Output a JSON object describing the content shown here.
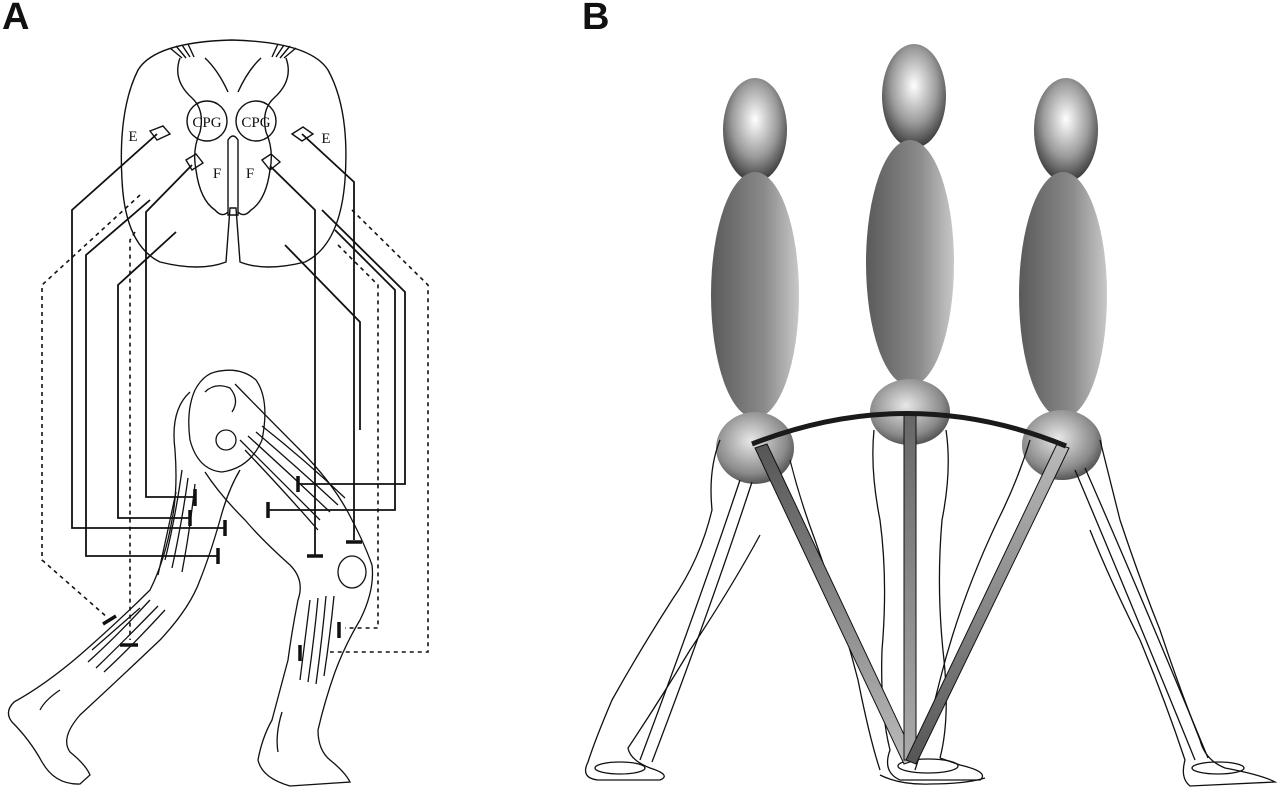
{
  "panels": {
    "a": {
      "label": "A"
    },
    "b": {
      "label": "B"
    }
  },
  "spinal_cord": {
    "left_cpg": "CPG",
    "right_cpg": "CPG",
    "left_extensor": "E",
    "right_extensor": "E",
    "left_flexor": "F",
    "right_flexor": "F"
  },
  "colors": {
    "line": "#111111",
    "body_gradient_light": "#f2f2f2",
    "body_gradient_dark": "#555555",
    "pendulum_arc": "#1a1a1a"
  }
}
